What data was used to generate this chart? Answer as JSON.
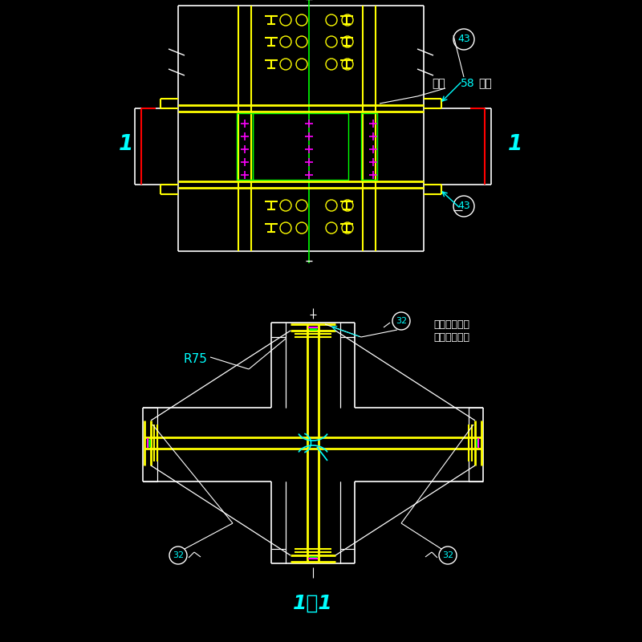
{
  "bg_color": "#000000",
  "white": "#ffffff",
  "yellow": "#ffff00",
  "cyan": "#00ffff",
  "magenta": "#ff00ff",
  "red": "#ff0000",
  "green": "#00ff00",
  "ann1a": "按表",
  "ann1b": "58",
  "ann1c": "选用",
  "ann2a": "用于焊接组合",
  "ann2b": "十字形截面柱",
  "label_43": "43",
  "label_32": "32",
  "label_r75": "R75",
  "title": "1－1"
}
